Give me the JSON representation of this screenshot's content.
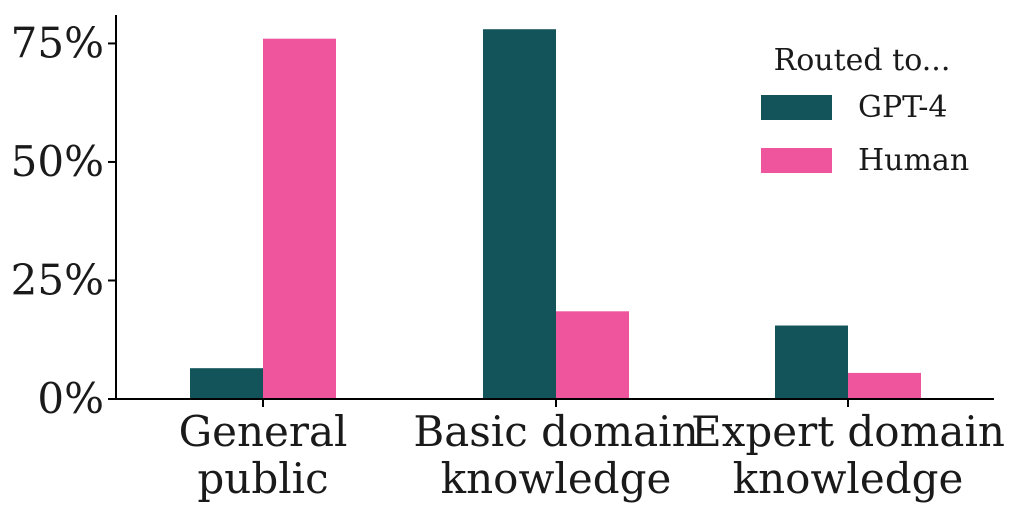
{
  "chart_data": {
    "type": "bar",
    "categories": [
      [
        "General",
        "public"
      ],
      [
        "Basic domain",
        "knowledge"
      ],
      [
        "Expert domain",
        "knowledge"
      ]
    ],
    "series": [
      {
        "name": "GPT-4",
        "color": "#13545b",
        "values": [
          6.5,
          78,
          15.5
        ]
      },
      {
        "name": "Human",
        "color": "#ef559c",
        "values": [
          76,
          18.5,
          5.5
        ]
      }
    ],
    "yticks": [
      "0%",
      "25%",
      "50%",
      "75%"
    ],
    "ylim": [
      0,
      81
    ],
    "legend": {
      "title": "Routed to...",
      "placement": "top-right"
    },
    "grid": false
  }
}
